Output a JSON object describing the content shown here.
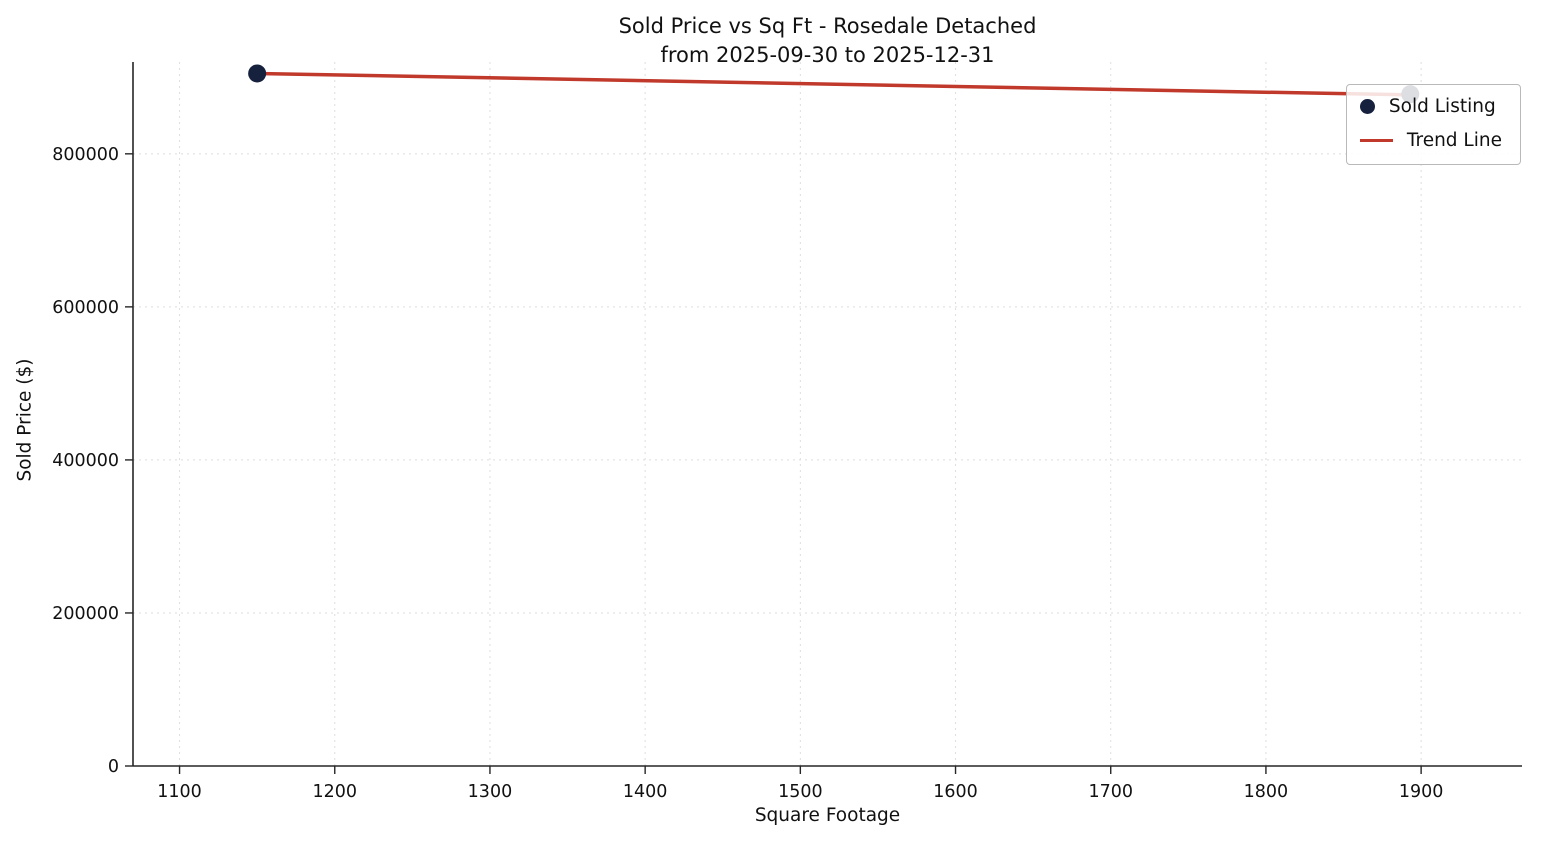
{
  "chart_data": {
    "type": "scatter",
    "title_line1": "Sold Price vs Sq Ft - Rosedale Detached",
    "title_line2": "from 2025-09-30 to 2025-12-31",
    "xlabel": "Square Footage",
    "ylabel": "Sold Price ($)",
    "xlim": [
      1070,
      1965
    ],
    "ylim": [
      0,
      920000
    ],
    "x_ticks": [
      1100,
      1200,
      1300,
      1400,
      1500,
      1600,
      1700,
      1800,
      1900
    ],
    "y_ticks": [
      0,
      200000,
      400000,
      600000,
      800000
    ],
    "grid": true,
    "grid_style": "dashed",
    "legend_position": "upper right",
    "background_color": "#ffffff",
    "series": [
      {
        "name": "Sold Listing",
        "type": "scatter",
        "color": "#16213e",
        "points": [
          {
            "x": 1150,
            "y": 905000
          },
          {
            "x": 1893,
            "y": 878000
          }
        ]
      },
      {
        "name": "Trend Line",
        "type": "line",
        "color": "#c0392b",
        "points": [
          {
            "x": 1150,
            "y": 905000
          },
          {
            "x": 1893,
            "y": 877000
          }
        ]
      }
    ]
  }
}
